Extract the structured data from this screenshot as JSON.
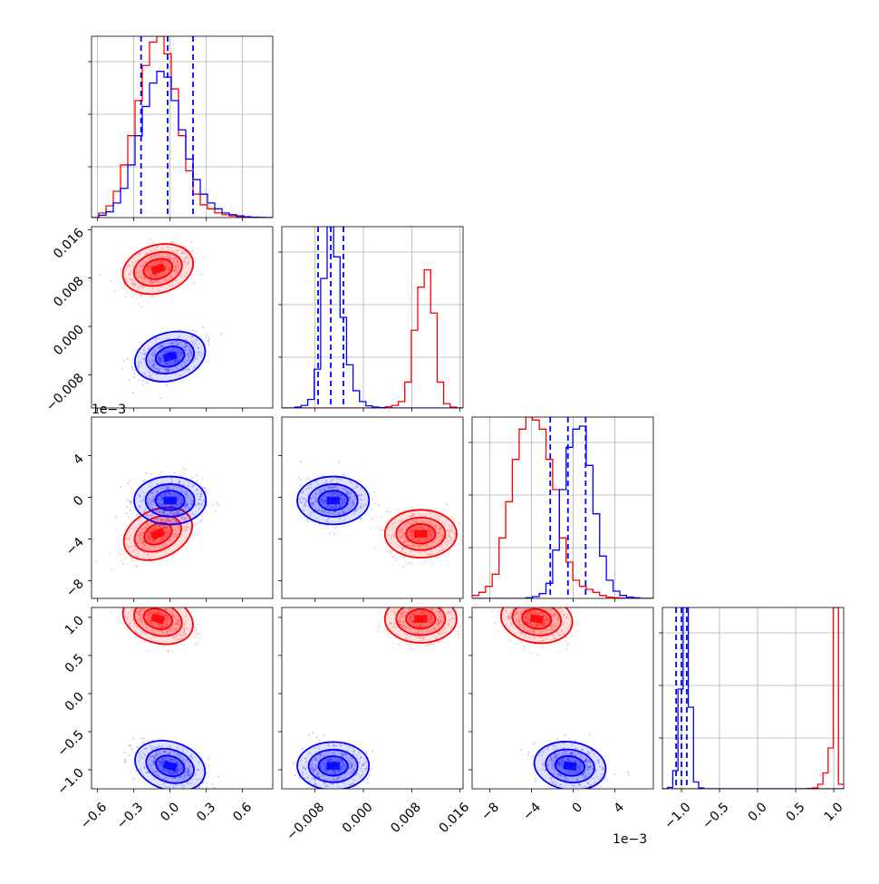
{
  "chart_data": {
    "type": "corner",
    "colors": {
      "red": "#ff0000",
      "blue": "#0000ff",
      "grid": "#b0b0b0"
    },
    "grid": true,
    "parameters": [
      {
        "ticks": [
          -0.6,
          -0.3,
          0.0,
          0.3,
          0.6
        ],
        "tick_labels": [
          "−0.6",
          "−0.3",
          "0.0",
          "0.3",
          "0.6"
        ],
        "range": [
          -0.65,
          0.85
        ]
      },
      {
        "ticks": [
          -0.008,
          0.0,
          0.008,
          0.016
        ],
        "tick_labels": [
          "−0.008",
          "0.000",
          "0.008",
          "0.016"
        ],
        "range": [
          -0.0135,
          0.0165
        ]
      },
      {
        "ticks": [
          -8,
          -4,
          0,
          4
        ],
        "tick_labels": [
          "−8",
          "−4",
          "0",
          "4"
        ],
        "offset_label": "1e−3",
        "range": [
          -9.7,
          7.7
        ]
      },
      {
        "ticks": [
          -1.0,
          -0.5,
          0.0,
          0.5,
          1.0
        ],
        "tick_labels": [
          "−1.0",
          "−0.5",
          "0.0",
          "0.5",
          "1.0"
        ],
        "range": [
          -1.25,
          1.13
        ]
      }
    ],
    "series": [
      {
        "color": "red",
        "centers": [
          -0.1,
          0.0095,
          -3.5,
          0.98
        ],
        "hist_counts": [
          [
            0,
            0.8,
            2.0,
            4.5,
            9.0,
            14.0,
            20.0,
            26.0,
            30.0,
            31.0,
            28.0,
            22.0,
            14.0,
            8.0,
            4.0,
            2.2,
            1.5,
            0.8,
            0.5,
            0.3,
            0.1,
            0.05,
            0.02,
            0.01,
            0
          ],
          [
            0,
            0,
            0,
            0,
            0,
            0,
            0,
            0,
            0,
            0,
            0,
            0,
            0,
            0,
            0,
            0,
            0.3,
            0.6,
            1.5,
            6.0,
            18.0,
            28.0,
            32.0,
            22.0,
            6.0,
            1.0,
            0.2,
            0
          ],
          [
            0.5,
            1.0,
            2.0,
            4.0,
            10.0,
            16.0,
            23.0,
            28.0,
            30.0,
            29.5,
            28.0,
            23.0,
            18.0,
            10.0,
            6.0,
            3.0,
            2.0,
            1.5,
            1.0,
            0.5,
            0.2,
            0.1,
            0.05,
            0,
            0,
            0,
            0
          ],
          [
            0,
            0,
            0,
            0,
            0,
            0,
            0,
            0,
            0,
            0,
            0,
            0,
            0,
            0,
            0,
            0,
            0,
            0,
            0,
            0,
            0,
            0,
            0,
            0,
            0,
            0,
            0,
            0,
            0.1,
            0.2,
            1.0,
            3.5,
            9.0,
            40.0,
            1.0
          ]
        ]
      },
      {
        "color": "blue",
        "centers": [
          0.0,
          -0.005,
          -0.3,
          -0.95
        ],
        "hist_counts": [
          [
            0,
            0.4,
            1.0,
            2.5,
            5.0,
            9.0,
            14.0,
            19.0,
            23.0,
            25.0,
            24.0,
            20.0,
            15.0,
            10.0,
            6.5,
            4.0,
            2.5,
            1.5,
            0.8,
            0.5,
            0.3,
            0.15,
            0.08,
            0.03,
            0
          ],
          [
            0,
            0,
            0.2,
            0.6,
            2.0,
            9.0,
            30.0,
            42.0,
            35.0,
            21.0,
            10.0,
            4.0,
            1.5,
            0.5,
            0.2,
            0.1,
            0,
            0,
            0,
            0,
            0,
            0,
            0,
            0,
            0,
            0,
            0,
            0
          ],
          [
            0,
            0,
            0,
            0,
            0,
            0,
            0,
            0,
            0.1,
            0.3,
            0.8,
            2.5,
            8.0,
            18.0,
            25.0,
            28.0,
            28.5,
            22.0,
            14.0,
            7.0,
            3.0,
            1.2,
            0.5,
            0.2,
            0.1,
            0,
            0
          ],
          [
            0,
            0.3,
            4.0,
            22.0,
            40.0,
            18.0,
            1.5,
            0.2,
            0,
            0,
            0,
            0,
            0,
            0,
            0,
            0,
            0,
            0,
            0,
            0,
            0,
            0,
            0,
            0,
            0,
            0,
            0,
            0,
            0,
            0,
            0,
            0,
            0,
            0,
            0
          ]
        ]
      }
    ],
    "quantile_lines": {
      "color": "blue",
      "values": [
        [
          -0.24,
          -0.02,
          0.19
        ],
        [
          -0.0075,
          -0.0054,
          -0.0033
        ],
        [
          -2.2,
          -0.5,
          1.2
        ],
        [
          -1.07,
          -1.0,
          -0.93
        ]
      ]
    }
  }
}
